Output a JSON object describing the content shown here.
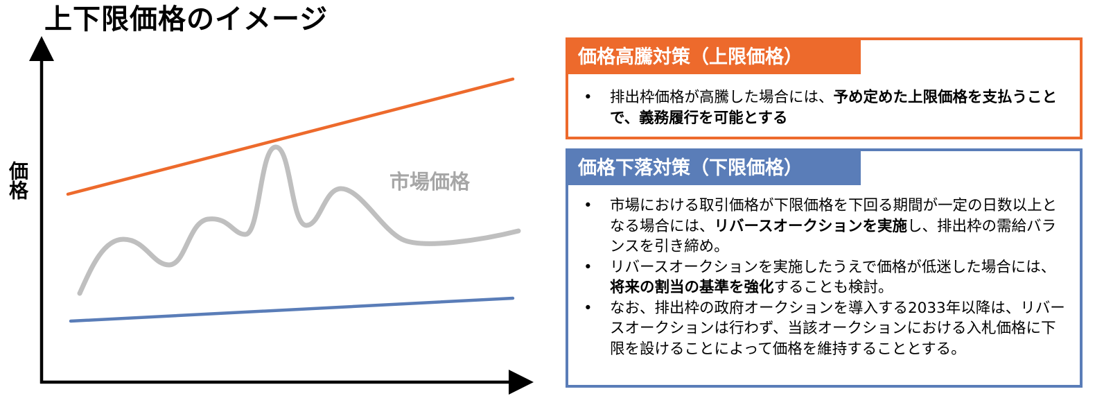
{
  "title": "上下限価格のイメージ",
  "diagram": {
    "ylabel": "価格",
    "market_label": "市場価格",
    "colors": {
      "upper_line": "#ed6a2c",
      "market_line": "#bfbfbf",
      "lower_line": "#5a7db8",
      "axis": "#000000"
    }
  },
  "upper_box": {
    "header": "価格高騰対策（上限価格）",
    "bullets": [
      {
        "parts": [
          {
            "text": "排出枠価格が高騰した場合には、",
            "bold": false
          },
          {
            "text": "予め定めた上限価格を支払うことで、義務履行を可能とする",
            "bold": true
          }
        ]
      }
    ]
  },
  "lower_box": {
    "header": "価格下落対策（下限価格）",
    "bullets": [
      {
        "parts": [
          {
            "text": "市場における取引価格が下限価格を下回る期間が一定の日数以上となる場合には、",
            "bold": false
          },
          {
            "text": "リバースオークションを実施",
            "bold": true
          },
          {
            "text": "し、排出枠の需給バランスを引き締め。",
            "bold": false
          }
        ]
      },
      {
        "parts": [
          {
            "text": "リバースオークションを実施したうえで価格が低迷した場合には、",
            "bold": false
          },
          {
            "text": "将来の割当の基準を強化",
            "bold": true
          },
          {
            "text": "することも検討。",
            "bold": false
          }
        ]
      },
      {
        "parts": [
          {
            "text": "なお、排出枠の政府オークションを導入する2033年以降は、リバースオークションは行わず、当該オークションにおける入札価格に下限を設けることによって価格を維持することとする。",
            "bold": false
          }
        ]
      }
    ]
  }
}
